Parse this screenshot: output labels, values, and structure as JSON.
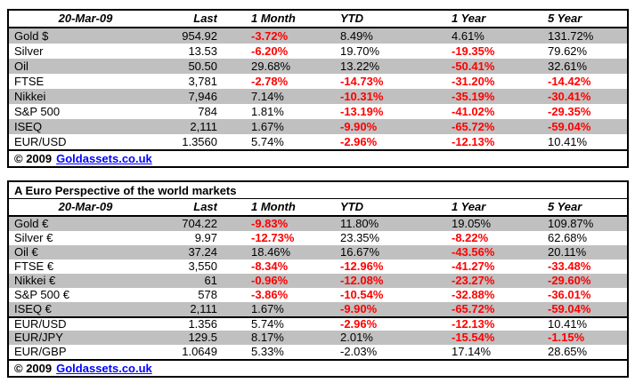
{
  "colors": {
    "row_shade": "#C0C0C0",
    "negative_text": "#FF0000",
    "link_blue": "#0000FF",
    "border": "#000000",
    "background": "#FFFFFF"
  },
  "table_usd": {
    "date_header": "20-Mar-09",
    "columns": [
      "Last",
      "1 Month",
      "YTD",
      "1 Year",
      "5 Year"
    ],
    "rows": [
      {
        "label": "Gold $",
        "last": "954.92",
        "pct": [
          {
            "t": "-3.72%",
            "neg": true
          },
          {
            "t": "8.49%"
          },
          {
            "t": "4.61%"
          },
          {
            "t": "131.72%"
          }
        ]
      },
      {
        "label": "Silver",
        "last": "13.53",
        "pct": [
          {
            "t": "-6.20%",
            "neg": true
          },
          {
            "t": "19.70%"
          },
          {
            "t": "-19.35%",
            "neg": true
          },
          {
            "t": "79.62%"
          }
        ]
      },
      {
        "label": "Oil",
        "last": "50.50",
        "pct": [
          {
            "t": "29.68%"
          },
          {
            "t": "13.22%"
          },
          {
            "t": "-50.41%",
            "neg": true
          },
          {
            "t": "32.61%"
          }
        ]
      },
      {
        "label": "FTSE",
        "last": "3,781",
        "pct": [
          {
            "t": "-2.78%",
            "neg": true
          },
          {
            "t": "-14.73%",
            "neg": true
          },
          {
            "t": "-31.20%",
            "neg": true
          },
          {
            "t": "-14.42%",
            "neg": true
          }
        ]
      },
      {
        "label": "Nikkei",
        "last": "7,946",
        "pct": [
          {
            "t": "7.14%"
          },
          {
            "t": "-10.31%",
            "neg": true
          },
          {
            "t": "-35.19%",
            "neg": true
          },
          {
            "t": "-30.41%",
            "neg": true
          }
        ]
      },
      {
        "label": "S&P 500",
        "last": "784",
        "pct": [
          {
            "t": "1.81%"
          },
          {
            "t": "-13.19%",
            "neg": true
          },
          {
            "t": "-41.02%",
            "neg": true
          },
          {
            "t": "-29.35%",
            "neg": true
          }
        ]
      },
      {
        "label": "ISEQ",
        "last": "2,111",
        "pct": [
          {
            "t": "1.67%"
          },
          {
            "t": "-9.90%",
            "neg": true
          },
          {
            "t": "-65.72%",
            "neg": true
          },
          {
            "t": "-59.04%",
            "neg": true
          }
        ]
      },
      {
        "label": "EUR/USD",
        "last": "1.3560",
        "pct": [
          {
            "t": "5.74%"
          },
          {
            "t": "-2.96%",
            "neg": true
          },
          {
            "t": "-12.13%",
            "neg": true
          },
          {
            "t": "10.41%"
          }
        ]
      }
    ],
    "footer": {
      "copyright": "© 2009",
      "link": "Goldassets.co.uk"
    }
  },
  "table_euro": {
    "title": "A Euro Perspective of the world markets",
    "date_header": "20-Mar-09",
    "columns": [
      "Last",
      "1 Month",
      "YTD",
      "1 Year",
      "5 Year"
    ],
    "rows": [
      {
        "label": "Gold €",
        "last": "704.22",
        "pct": [
          {
            "t": "-9.83%",
            "neg": true
          },
          {
            "t": "11.80%"
          },
          {
            "t": "19.05%"
          },
          {
            "t": "109.87%"
          }
        ]
      },
      {
        "label": "Silver €",
        "last": "9.97",
        "pct": [
          {
            "t": "-12.73%",
            "neg": true
          },
          {
            "t": "23.35%"
          },
          {
            "t": "-8.22%",
            "neg": true
          },
          {
            "t": "62.68%"
          }
        ]
      },
      {
        "label": "Oil €",
        "last": "37.24",
        "pct": [
          {
            "t": "18.46%"
          },
          {
            "t": "16.67%"
          },
          {
            "t": "-43.56%",
            "neg": true
          },
          {
            "t": "20.11%"
          }
        ]
      },
      {
        "label": "FTSE €",
        "last": "3,550",
        "pct": [
          {
            "t": "-8.34%",
            "neg": true
          },
          {
            "t": "-12.96%",
            "neg": true
          },
          {
            "t": "-41.27%",
            "neg": true
          },
          {
            "t": "-33.48%",
            "neg": true
          }
        ]
      },
      {
        "label": "Nikkei €",
        "last": "61",
        "pct": [
          {
            "t": "-0.96%",
            "neg": true
          },
          {
            "t": "-12.08%",
            "neg": true
          },
          {
            "t": "-23.27%",
            "neg": true
          },
          {
            "t": "-29.60%",
            "neg": true
          }
        ]
      },
      {
        "label": "S&P 500 €",
        "last": "578",
        "pct": [
          {
            "t": "-3.86%",
            "neg": true
          },
          {
            "t": "-10.54%",
            "neg": true
          },
          {
            "t": "-32.88%",
            "neg": true
          },
          {
            "t": "-36.01%",
            "neg": true
          }
        ]
      },
      {
        "label": "ISEQ €",
        "last": "2,111",
        "pct": [
          {
            "t": "1.67%"
          },
          {
            "t": "-9.90%",
            "neg": true
          },
          {
            "t": "-65.72%",
            "neg": true
          },
          {
            "t": "-59.04%",
            "neg": true
          }
        ]
      },
      {
        "label": "EUR/USD",
        "last": "1.356",
        "section_break": true,
        "pct": [
          {
            "t": "5.74%"
          },
          {
            "t": "-2.96%",
            "neg": true
          },
          {
            "t": "-12.13%",
            "neg": true
          },
          {
            "t": "10.41%"
          }
        ]
      },
      {
        "label": "EUR/JPY",
        "last": "129.5",
        "pct": [
          {
            "t": "8.17%"
          },
          {
            "t": "2.01%"
          },
          {
            "t": "-15.54%",
            "neg": true
          },
          {
            "t": "-1.15%",
            "neg": true
          }
        ]
      },
      {
        "label": "EUR/GBP",
        "last": "1.0649",
        "pct": [
          {
            "t": "5.33%"
          },
          {
            "t": "-2.03%"
          },
          {
            "t": "17.14%"
          },
          {
            "t": "28.65%"
          }
        ]
      }
    ],
    "footer": {
      "copyright": "© 2009",
      "link": "Goldassets.co.uk"
    }
  }
}
